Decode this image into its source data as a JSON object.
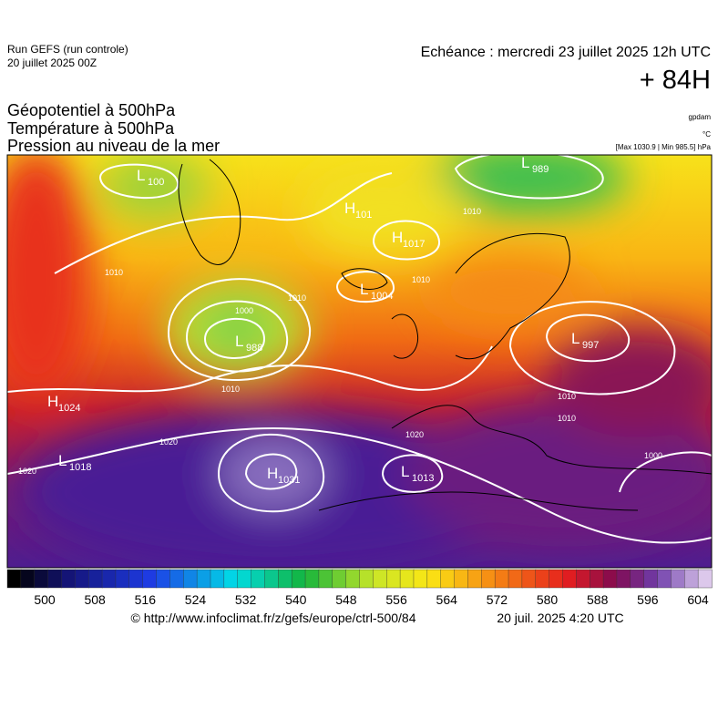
{
  "header": {
    "run": "Run GEFS (run controle)",
    "date": "20 juillet 2025 00Z",
    "echeance": "Echéance : mercredi 23 juillet 2025 12h UTC",
    "lead": "+ 84H"
  },
  "fields": [
    "Géopotentiel à 500hPa",
    "Température à 500hPa",
    "Pression au niveau de la mer"
  ],
  "units": [
    "gpdam",
    "°C",
    "[Max 1030.9 | Min 985.5] hPa"
  ],
  "centers": [
    {
      "type": "L",
      "value": 100
    },
    {
      "type": "H",
      "value": 101
    },
    {
      "type": "H",
      "value": 1017
    },
    {
      "type": "L",
      "value": 1004
    },
    {
      "type": "L",
      "value": 988
    },
    {
      "type": "L",
      "value": 989
    },
    {
      "type": "L",
      "value": 997
    },
    {
      "type": "H",
      "value": 1024
    },
    {
      "type": "L",
      "value": 1018
    },
    {
      "type": "H",
      "value": 1031
    },
    {
      "type": "L",
      "value": 1013
    }
  ],
  "contour_labels": [
    1010,
    1020,
    1020,
    1010,
    1010,
    1010,
    1010,
    1010,
    1000,
    1000,
    1020,
    1010
  ],
  "colorbar": {
    "ticks": [
      500,
      508,
      516,
      524,
      532,
      540,
      548,
      556,
      564,
      572,
      580,
      588,
      596,
      604
    ]
  },
  "footer": {
    "url": "© http://www.infoclimat.fr/z/gefs/europe/ctrl-500/84",
    "generated": "20 juil. 2025  4:20 UTC"
  }
}
